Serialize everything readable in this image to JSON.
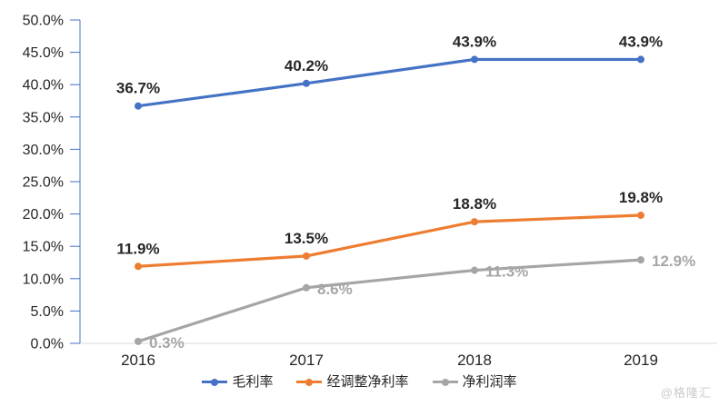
{
  "watermark": "@格隆汇",
  "chart_data": {
    "type": "line",
    "title": "",
    "xlabel": "",
    "ylabel": "",
    "categories": [
      "2016",
      "2017",
      "2018",
      "2019"
    ],
    "series": [
      {
        "name": "毛利率",
        "values": [
          36.7,
          40.2,
          43.9,
          43.9
        ],
        "labels": [
          "36.7%",
          "40.2%",
          "43.9%",
          "43.9%"
        ],
        "color": "#4472C4",
        "label_color": "#262626",
        "label_position": "above"
      },
      {
        "name": "经调整净利率",
        "values": [
          11.9,
          13.5,
          18.8,
          19.8
        ],
        "labels": [
          "11.9%",
          "13.5%",
          "18.8%",
          "19.8%"
        ],
        "color": "#ED7D31",
        "label_color": "#262626",
        "label_position": "above"
      },
      {
        "name": "净利润率",
        "values": [
          0.3,
          8.6,
          11.3,
          12.9
        ],
        "labels": [
          "0.3%",
          "8.6%",
          "11.3%",
          "12.9%"
        ],
        "color": "#A5A5A5",
        "label_color": "#A6A6A6",
        "label_position": "right"
      }
    ],
    "ylim": [
      0,
      50
    ],
    "y_tick_step": 5,
    "y_tick_labels": [
      "0.0%",
      "5.0%",
      "10.0%",
      "15.0%",
      "20.0%",
      "25.0%",
      "30.0%",
      "35.0%",
      "40.0%",
      "45.0%",
      "50.0%"
    ],
    "grid": false,
    "legend_position": "bottom",
    "axis_color": "#4472C4",
    "baseline_color": "#D9D9D9",
    "tick_label_color": "#262626"
  }
}
